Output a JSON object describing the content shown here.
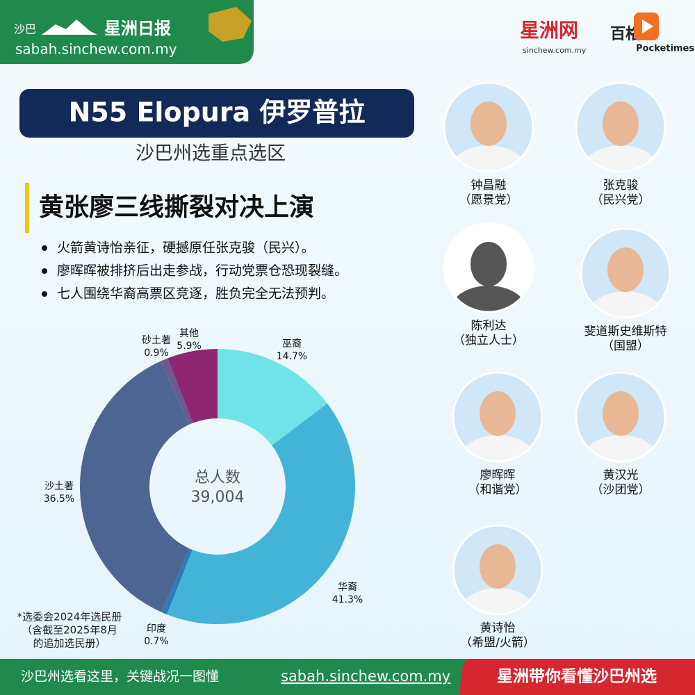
{
  "header": {
    "region": "沙巴",
    "brand": "星洲日报",
    "url": "sabah.sinchew.com.my",
    "logo1": "星洲网",
    "logo1_sub": "sinchew.com.my",
    "logo2": "百格",
    "logo3": "Pocketimes"
  },
  "title": "N55 Elopura 伊罗普拉",
  "subtitle": "沙巴州选重点选区",
  "headline": "黄张廖三线撕裂对决上演",
  "bullets": [
    "火箭黄诗怡亲征，硬撼原任张克骏（民兴）。",
    "廖晖晖被排挤后出走参战，行动党票仓恐现裂缝。",
    "七人围绕华裔高票区竞逐，胜负完全无法预判。"
  ],
  "chart_data": {
    "type": "donut",
    "categories": [
      "巫裔",
      "华裔",
      "印度",
      "沙土著",
      "砂土著",
      "其他"
    ],
    "values": [
      14.7,
      41.3,
      0.7,
      36.5,
      0.9,
      5.9
    ],
    "value_labels": [
      "14.7%",
      "41.3%",
      "0.7%",
      "36.5%",
      "0.9%",
      "5.9%"
    ],
    "colors": [
      "#6fe3e8",
      "#43b4d8",
      "#2a7db8",
      "#4c6691",
      "#6b5a8c",
      "#8e2672"
    ],
    "center_title": "总人数",
    "total": {
      "value": 39004,
      "label": "39,004"
    },
    "note": [
      "*选委会2024年选民册",
      "（含截至2025年8月",
      "的追加选民册）"
    ]
  },
  "candidates": [
    {
      "name": "钟昌融",
      "party": "（愿景党）"
    },
    {
      "name": "张克骏",
      "party": "（民兴党）"
    },
    {
      "name": "陈利达",
      "party": "（独立人士）"
    },
    {
      "name": "斐道斯史维斯特",
      "party": "（国盟）"
    },
    {
      "name": "廖晖晖",
      "party": "（和谐党）"
    },
    {
      "name": "黄汉光",
      "party": "（沙团党）"
    },
    {
      "name": "黄诗怡",
      "party": "（希盟/火箭）"
    }
  ],
  "footer": {
    "left": "沙巴州选看这里，关键战况一图懂",
    "url": "sabah.sinchew.com.my",
    "right": "星洲带你看懂沙巴州选"
  }
}
